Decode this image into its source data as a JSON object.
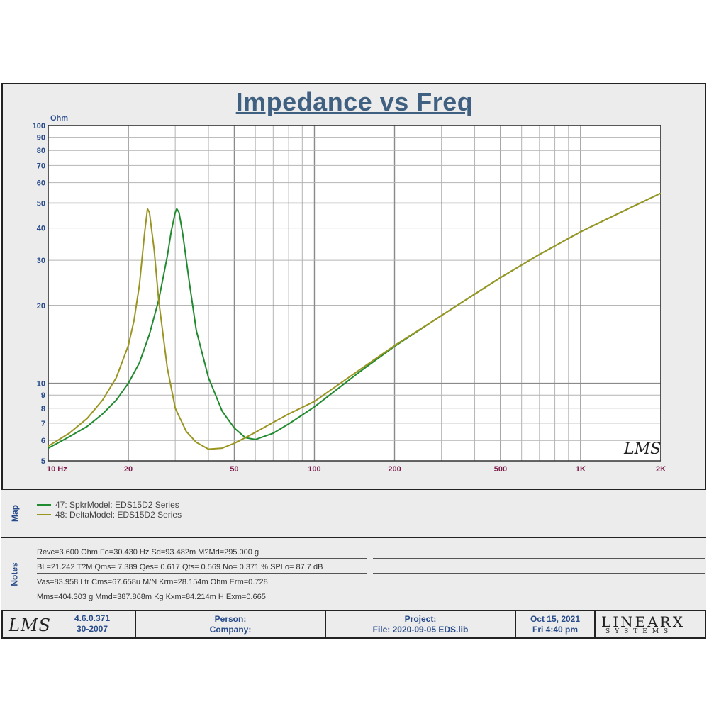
{
  "title": "Impedance vs Freq",
  "colors": {
    "spkr": "#1f8a2e",
    "delta": "#9a9520",
    "axis_y": "#274b8a",
    "axis_x": "#7b1c4a",
    "title": "#3f6080"
  },
  "watermark": "LMS",
  "chart_data": {
    "type": "line",
    "title": "Impedance vs Freq",
    "ylabel": "Ohm",
    "xlabel": "",
    "x_scale": "log",
    "y_scale": "log",
    "xlim": [
      10,
      2000
    ],
    "ylim": [
      5,
      100
    ],
    "grid": true,
    "x_ticks": [
      {
        "value": 10,
        "label": "10  Hz"
      },
      {
        "value": 20,
        "label": "20"
      },
      {
        "value": 50,
        "label": "50"
      },
      {
        "value": 100,
        "label": "100"
      },
      {
        "value": 200,
        "label": "200"
      },
      {
        "value": 500,
        "label": "500"
      },
      {
        "value": 1000,
        "label": "1K"
      },
      {
        "value": 2000,
        "label": "2K"
      }
    ],
    "y_ticks": [
      {
        "value": 100,
        "label": "100"
      },
      {
        "value": 90,
        "label": "90"
      },
      {
        "value": 80,
        "label": "80"
      },
      {
        "value": 70,
        "label": "70"
      },
      {
        "value": 60,
        "label": "60"
      },
      {
        "value": 50,
        "label": "50"
      },
      {
        "value": 40,
        "label": "40"
      },
      {
        "value": 30,
        "label": "30"
      },
      {
        "value": 20,
        "label": "20"
      },
      {
        "value": 10,
        "label": "10"
      },
      {
        "value": 9,
        "label": "9"
      },
      {
        "value": 8,
        "label": "8"
      },
      {
        "value": 7,
        "label": "7"
      },
      {
        "value": 6,
        "label": "6"
      },
      {
        "value": 5,
        "label": "5"
      }
    ],
    "series": [
      {
        "name": "47: SpkrModel: EDS15D2 Series",
        "color": "#1f8a2e",
        "x": [
          10,
          12,
          14,
          16,
          18,
          20,
          22,
          24,
          26,
          28,
          29,
          30,
          30.4,
          31,
          32,
          34,
          36,
          40,
          45,
          50,
          55,
          60,
          70,
          80,
          100,
          150,
          200,
          300,
          500,
          700,
          1000,
          1500,
          2000
        ],
        "y": [
          5.6,
          6.2,
          6.8,
          7.6,
          8.6,
          10,
          12,
          15.5,
          21,
          31,
          39,
          46,
          47.5,
          46,
          38,
          24,
          16,
          10.5,
          7.8,
          6.7,
          6.15,
          6.05,
          6.4,
          6.95,
          8.1,
          11.2,
          13.9,
          18.3,
          25.7,
          31.6,
          38.7,
          47.4,
          54.6
        ]
      },
      {
        "name": "48: DeltaModel: EDS15D2 Series",
        "color": "#9a9520",
        "x": [
          10,
          12,
          14,
          16,
          18,
          20,
          21,
          22,
          23,
          23.6,
          24,
          25,
          26,
          28,
          30,
          33,
          36,
          40,
          45,
          50,
          55,
          60,
          70,
          80,
          100,
          150,
          200,
          300,
          500,
          700,
          1000,
          1500,
          2000
        ],
        "y": [
          5.7,
          6.4,
          7.3,
          8.6,
          10.5,
          14,
          17.5,
          24,
          38,
          47.5,
          46,
          33,
          21,
          11.5,
          8,
          6.5,
          5.9,
          5.55,
          5.6,
          5.85,
          6.15,
          6.45,
          7.05,
          7.6,
          8.5,
          11.4,
          14.0,
          18.3,
          25.7,
          31.6,
          38.7,
          47.4,
          54.6
        ]
      }
    ]
  },
  "map": {
    "label": "Map",
    "items": [
      {
        "text": "47: SpkrModel: EDS15D2 Series",
        "color": "#1f8a2e"
      },
      {
        "text": "48: DeltaModel: EDS15D2 Series",
        "color": "#9a9520"
      }
    ]
  },
  "notes": {
    "label": "Notes",
    "lines": [
      "Revc=3.600 Ohm  Fo=30.430 Hz  Sd=93.482m M?Md=295.000 g",
      "BL=21.242 T?M  Qms= 7.389  Qes= 0.617  Qts= 0.569  No= 0.371 %  SPLo= 87.7 dB",
      "Vas=83.958 Ltr  Cms=67.658u M/N  Krm=28.154m Ohm  Erm=0.728",
      "Mms=404.303 g  Mmd=387.868m Kg  Kxm=84.214m H  Exm=0.665"
    ]
  },
  "footer": {
    "logo": "LMS",
    "version": "4.6.0.371",
    "build": "30-2007",
    "person_label": "Person:",
    "company_label": "Company:",
    "project_label": "Project:",
    "file_label": "File: 2020-09-05 EDS.lib",
    "date": "Oct 15, 2021",
    "time": "Fri  4:40 pm",
    "brand_top": "LINEARX",
    "brand_bottom": "SYSTEMS"
  }
}
